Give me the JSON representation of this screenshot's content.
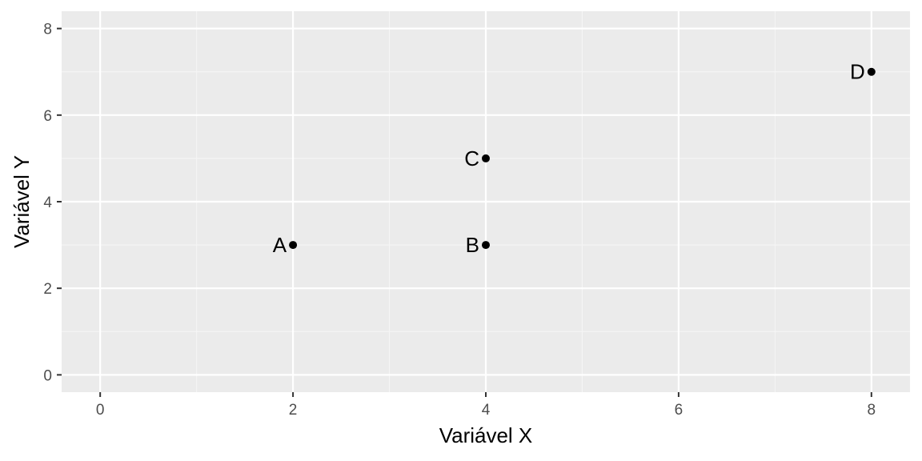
{
  "chart_data": {
    "type": "scatter",
    "xlabel": "Variável X",
    "ylabel": "Variável Y",
    "xlim": [
      -0.4,
      8.4
    ],
    "ylim": [
      -0.4,
      8.4
    ],
    "x_ticks": [
      0,
      2,
      4,
      6,
      8
    ],
    "y_ticks": [
      0,
      2,
      4,
      6,
      8
    ],
    "x_minor": [
      1,
      3,
      5,
      7
    ],
    "y_minor": [
      1,
      3,
      5,
      7
    ],
    "grid": true,
    "points": [
      {
        "label": "A",
        "x": 2,
        "y": 3
      },
      {
        "label": "B",
        "x": 4,
        "y": 3
      },
      {
        "label": "C",
        "x": 4,
        "y": 5
      },
      {
        "label": "D",
        "x": 8,
        "y": 7
      }
    ],
    "colors": {
      "panel": "#ebebeb",
      "grid_major": "#ffffff",
      "grid_minor": "#f5f5f5",
      "point": "#000000",
      "tick": "#333333"
    }
  }
}
